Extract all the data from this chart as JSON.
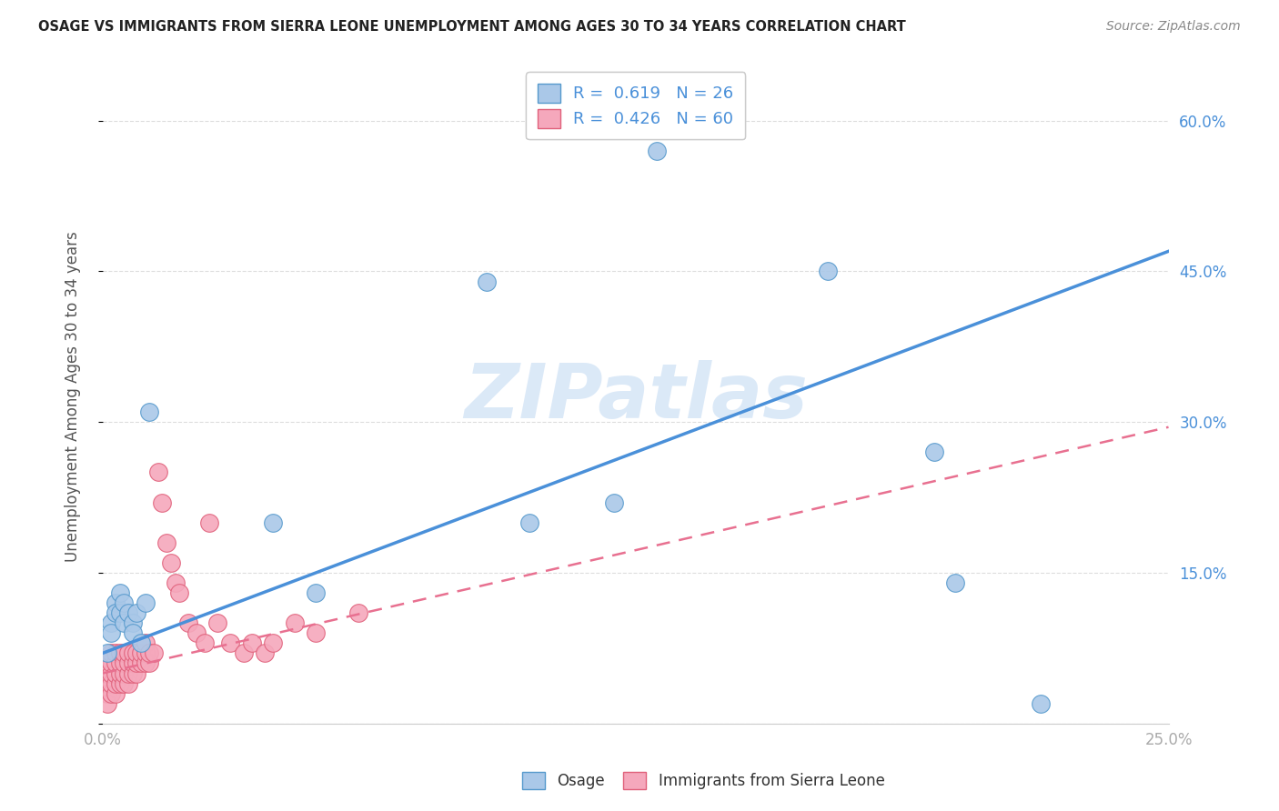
{
  "title": "OSAGE VS IMMIGRANTS FROM SIERRA LEONE UNEMPLOYMENT AMONG AGES 30 TO 34 YEARS CORRELATION CHART",
  "source": "Source: ZipAtlas.com",
  "ylabel": "Unemployment Among Ages 30 to 34 years",
  "xlim": [
    0.0,
    0.25
  ],
  "ylim": [
    0.0,
    0.65
  ],
  "xticks": [
    0.0,
    0.05,
    0.1,
    0.15,
    0.2,
    0.25
  ],
  "xticklabels": [
    "0.0%",
    "",
    "",
    "",
    "",
    "25.0%"
  ],
  "yticks": [
    0.0,
    0.15,
    0.3,
    0.45,
    0.6
  ],
  "yticklabels": [
    "",
    "15.0%",
    "30.0%",
    "45.0%",
    "60.0%"
  ],
  "osage_color": "#aac8e8",
  "sierra_color": "#f5a8bc",
  "osage_edge": "#5599cc",
  "sierra_edge": "#e0607a",
  "osage_R": 0.619,
  "osage_N": 26,
  "sierra_R": 0.426,
  "sierra_N": 60,
  "trend_blue_color": "#4a90d9",
  "trend_pink_color": "#e87090",
  "watermark_color": "#cce0f5",
  "background_color": "#ffffff",
  "grid_color": "#dddddd",
  "osage_x": [
    0.001,
    0.002,
    0.002,
    0.003,
    0.003,
    0.004,
    0.004,
    0.005,
    0.005,
    0.006,
    0.007,
    0.007,
    0.008,
    0.009,
    0.01,
    0.011,
    0.04,
    0.05,
    0.09,
    0.1,
    0.13,
    0.17,
    0.195,
    0.2,
    0.22,
    0.12
  ],
  "osage_y": [
    0.07,
    0.1,
    0.09,
    0.12,
    0.11,
    0.13,
    0.11,
    0.1,
    0.12,
    0.11,
    0.1,
    0.09,
    0.11,
    0.08,
    0.12,
    0.31,
    0.2,
    0.13,
    0.44,
    0.2,
    0.57,
    0.45,
    0.27,
    0.14,
    0.02,
    0.22
  ],
  "sierra_x": [
    0.001,
    0.001,
    0.001,
    0.001,
    0.001,
    0.002,
    0.002,
    0.002,
    0.002,
    0.002,
    0.003,
    0.003,
    0.003,
    0.003,
    0.003,
    0.004,
    0.004,
    0.004,
    0.004,
    0.005,
    0.005,
    0.005,
    0.005,
    0.006,
    0.006,
    0.006,
    0.006,
    0.007,
    0.007,
    0.007,
    0.008,
    0.008,
    0.008,
    0.009,
    0.009,
    0.01,
    0.01,
    0.01,
    0.011,
    0.011,
    0.012,
    0.013,
    0.014,
    0.015,
    0.016,
    0.017,
    0.018,
    0.02,
    0.022,
    0.024,
    0.025,
    0.027,
    0.03,
    0.033,
    0.035,
    0.038,
    0.04,
    0.045,
    0.05,
    0.06
  ],
  "sierra_y": [
    0.04,
    0.03,
    0.02,
    0.05,
    0.06,
    0.03,
    0.04,
    0.05,
    0.06,
    0.07,
    0.03,
    0.04,
    0.05,
    0.06,
    0.07,
    0.04,
    0.05,
    0.06,
    0.07,
    0.04,
    0.05,
    0.06,
    0.07,
    0.04,
    0.05,
    0.06,
    0.07,
    0.05,
    0.06,
    0.07,
    0.05,
    0.06,
    0.07,
    0.06,
    0.07,
    0.06,
    0.07,
    0.08,
    0.06,
    0.07,
    0.07,
    0.25,
    0.22,
    0.18,
    0.16,
    0.14,
    0.13,
    0.1,
    0.09,
    0.08,
    0.2,
    0.1,
    0.08,
    0.07,
    0.08,
    0.07,
    0.08,
    0.1,
    0.09,
    0.11
  ]
}
